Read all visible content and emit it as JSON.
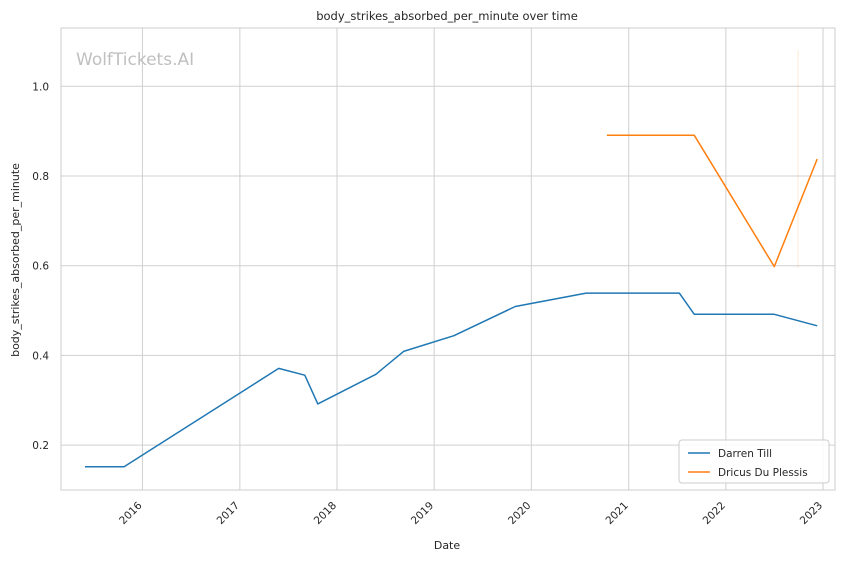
{
  "chart_data": {
    "type": "line",
    "title": "body_strikes_absorbed_per_minute over time",
    "xlabel": "Date",
    "ylabel": "body_strikes_absorbed_per_minute",
    "watermark": "WolfTickets.AI",
    "x_ticks": [
      "2016",
      "2017",
      "2018",
      "2019",
      "2020",
      "2021",
      "2022",
      "2023"
    ],
    "y_ticks": [
      "0.2",
      "0.4",
      "0.6",
      "0.8",
      "1.0"
    ],
    "xlim": [
      "2015-03-01",
      "2023-02-15"
    ],
    "ylim": [
      0.1,
      1.13
    ],
    "grid": true,
    "legend_position": "bottom-right",
    "series": [
      {
        "name": "Darren Till",
        "color": "#1f77b4",
        "points": [
          [
            "2015-05-30",
            0.152
          ],
          [
            "2015-10-24",
            0.152
          ],
          [
            "2017-05-27",
            0.371
          ],
          [
            "2017-09-02",
            0.356
          ],
          [
            "2017-10-21",
            0.292
          ],
          [
            "2018-05-27",
            0.358
          ],
          [
            "2018-09-08",
            0.409
          ],
          [
            "2019-03-16",
            0.444
          ],
          [
            "2019-11-02",
            0.509
          ],
          [
            "2020-07-25",
            0.539
          ],
          [
            "2021-07-10",
            0.539
          ],
          [
            "2021-09-04",
            0.492
          ],
          [
            "2022-06-30",
            0.492
          ],
          [
            "2022-12-10",
            0.466
          ]
        ]
      },
      {
        "name": "Dricus Du Plessis",
        "color": "#ff7f0e",
        "points": [
          [
            "2020-10-11",
            0.891
          ],
          [
            "2021-09-04",
            0.891
          ],
          [
            "2022-07-02",
            0.598
          ],
          [
            "2022-12-10",
            0.838
          ]
        ]
      }
    ]
  }
}
